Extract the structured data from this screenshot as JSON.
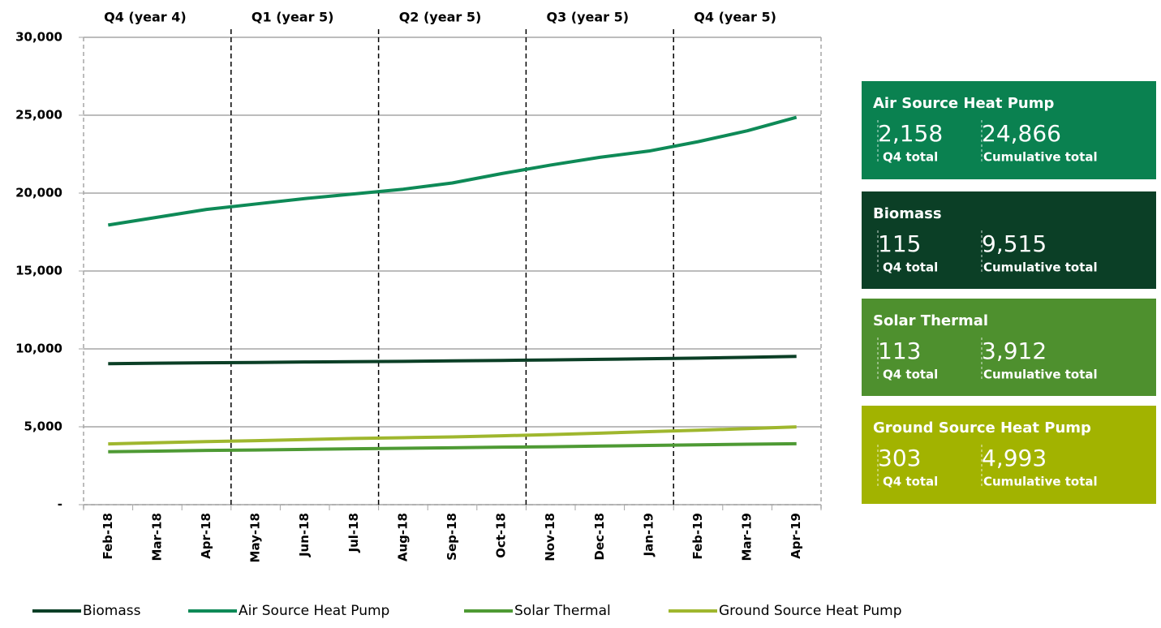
{
  "chart_data": {
    "type": "line",
    "quarters": [
      "Q4 (year 4)",
      "Q1 (year 5)",
      "Q2 (year 5)",
      "Q3 (year 5)",
      "Q4 (year 5)"
    ],
    "categories": [
      "Feb-18",
      "Mar-18",
      "Apr-18",
      "May-18",
      "Jun-18",
      "Jul-18",
      "Aug-18",
      "Sep-18",
      "Oct-18",
      "Nov-18",
      "Dec-18",
      "Jan-19",
      "Feb-19",
      "Mar-19",
      "Apr-19"
    ],
    "series": [
      {
        "name": "Biomass",
        "color": "#0b3f26",
        "values": [
          9050,
          9080,
          9110,
          9130,
          9160,
          9180,
          9200,
          9230,
          9260,
          9290,
          9330,
          9370,
          9410,
          9460,
          9515
        ]
      },
      {
        "name": "Air Source Heat Pump",
        "color": "#0e8a57",
        "values": [
          17950,
          18450,
          18950,
          19300,
          19650,
          19950,
          20250,
          20650,
          21250,
          21800,
          22300,
          22700,
          23300,
          24000,
          24866
        ]
      },
      {
        "name": "Solar Thermal",
        "color": "#4e9a34",
        "values": [
          3400,
          3440,
          3480,
          3510,
          3550,
          3590,
          3620,
          3650,
          3690,
          3720,
          3760,
          3800,
          3840,
          3880,
          3912
        ]
      },
      {
        "name": "Ground Source Heat Pump",
        "color": "#9fb72e",
        "values": [
          3900,
          3980,
          4050,
          4110,
          4180,
          4250,
          4300,
          4350,
          4420,
          4500,
          4590,
          4690,
          4780,
          4880,
          4993
        ]
      }
    ],
    "ylim": [
      0,
      30000
    ],
    "yticks": [
      {
        "value": 0,
        "label": "-"
      },
      {
        "value": 5000,
        "label": "5,000"
      },
      {
        "value": 10000,
        "label": "10,000"
      },
      {
        "value": 15000,
        "label": "15,000"
      },
      {
        "value": 20000,
        "label": "20,000"
      },
      {
        "value": 25000,
        "label": "25,000"
      },
      {
        "value": 30000,
        "label": "30,000"
      }
    ],
    "grid": true,
    "legend": "bottom"
  },
  "panels": [
    {
      "title": "Air Source Heat Pump",
      "color": "#0a8150",
      "q4_total": "2,158",
      "q4_label": "Q4 total",
      "cumulative": "24,866",
      "cumulative_label": "Cumulative total"
    },
    {
      "title": "Biomass",
      "color": "#0b3f26",
      "q4_total": "115",
      "q4_label": "Q4 total",
      "cumulative": "9,515",
      "cumulative_label": "Cumulative total"
    },
    {
      "title": "Solar Thermal",
      "color": "#4e902e",
      "q4_total": "113",
      "q4_label": "Q4 total",
      "cumulative": "3,912",
      "cumulative_label": "Cumulative total"
    },
    {
      "title": "Ground Source Heat Pump",
      "color": "#a2b300",
      "q4_total": "303",
      "q4_label": "Q4 total",
      "cumulative": "4,993",
      "cumulative_label": "Cumulative total"
    }
  ]
}
